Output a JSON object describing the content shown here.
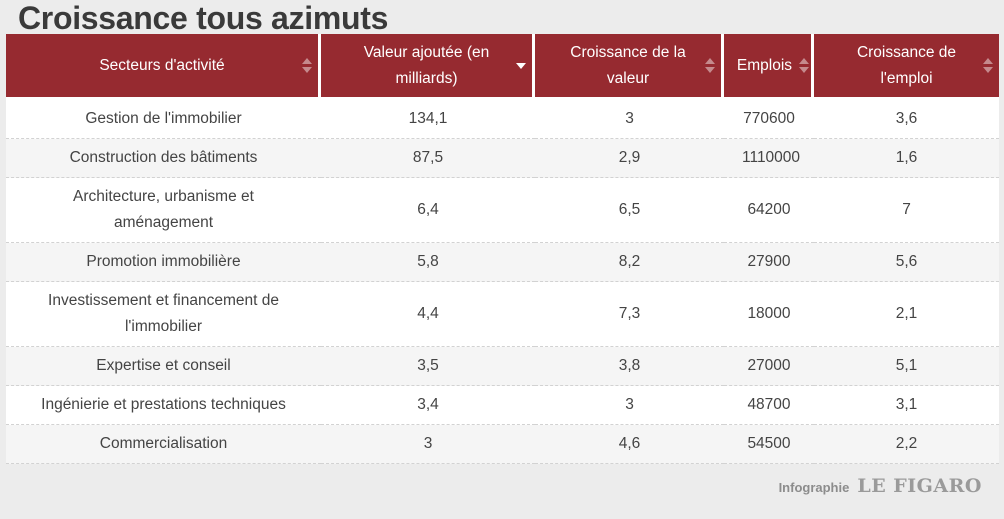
{
  "title": "Croissance tous azimuts",
  "chart_data": {
    "type": "table",
    "columns": [
      "Secteurs d'activité",
      "Valeur ajoutée (en milliards)",
      "Croissance de la valeur",
      "Emplois",
      "Croissance de l'emploi"
    ],
    "sorted_column": "Valeur ajoutée (en milliards)",
    "sort_direction": "descending",
    "rows": [
      [
        "Gestion de l'immobilier",
        "134,1",
        "3",
        "770600",
        "3,6"
      ],
      [
        "Construction des bâtiments",
        "87,5",
        "2,9",
        "1110000",
        "1,6"
      ],
      [
        "Architecture, urbanisme et aménagement",
        "6,4",
        "6,5",
        "64200",
        "7"
      ],
      [
        "Promotion immobilière",
        "5,8",
        "8,2",
        "27900",
        "5,6"
      ],
      [
        "Investissement et financement de l'immobilier",
        "4,4",
        "7,3",
        "18000",
        "2,1"
      ],
      [
        "Expertise et conseil",
        "3,5",
        "3,8",
        "27000",
        "5,1"
      ],
      [
        "Ingénierie et prestations techniques",
        "3,4",
        "3",
        "48700",
        "3,1"
      ],
      [
        "Commercialisation",
        "3",
        "4,6",
        "54500",
        "2,2"
      ]
    ]
  },
  "credit": {
    "label": "Infographie",
    "logo": "LE FIGARO"
  },
  "colors": {
    "header_bg": "#962a30",
    "header_text": "#ffffff",
    "row_odd": "#ffffff",
    "row_even": "#f5f5f5",
    "background": "#ececec"
  },
  "icons": {
    "sort": "sort-arrows-icon",
    "sort_active": "sort-descending-icon"
  }
}
